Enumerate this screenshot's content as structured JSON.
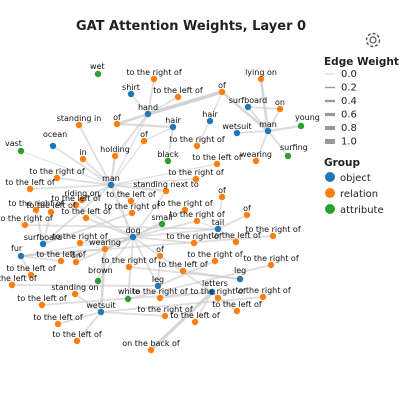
{
  "chart_data": {
    "type": "network",
    "title": "GAT Attention Weights, Layer 0",
    "colors": {
      "object": "#1f77b4",
      "relation": "#ff7f0e",
      "attribute": "#2ca02c"
    },
    "legend": {
      "edge_title": "Edge Weight",
      "edge_levels": [
        "0.0",
        "0.2",
        "0.4",
        "0.6",
        "0.8",
        "1.0"
      ],
      "group_title": "Group",
      "groups": [
        {
          "key": "object",
          "label": "object"
        },
        {
          "key": "relation",
          "label": "relation"
        },
        {
          "key": "attribute",
          "label": "attribute"
        }
      ]
    },
    "nodes": [
      {
        "id": "wet",
        "label": "wet",
        "group": "attribute"
      },
      {
        "id": "lyingon",
        "label": "lying on",
        "group": "relation"
      },
      {
        "id": "toright_a",
        "label": "to the right of",
        "group": "relation"
      },
      {
        "id": "shirt",
        "label": "shirt",
        "group": "object"
      },
      {
        "id": "of_a",
        "label": "of",
        "group": "relation"
      },
      {
        "id": "toleft_a",
        "label": "to the left of",
        "group": "relation"
      },
      {
        "id": "surfboard_a",
        "label": "surfboard",
        "group": "object"
      },
      {
        "id": "on_a",
        "label": "on",
        "group": "relation"
      },
      {
        "id": "hand",
        "label": "hand",
        "group": "object"
      },
      {
        "id": "young",
        "label": "young",
        "group": "attribute"
      },
      {
        "id": "hair_a",
        "label": "hair",
        "group": "object"
      },
      {
        "id": "wetsuit_a",
        "label": "wetsuit",
        "group": "object"
      },
      {
        "id": "man_a",
        "label": "man",
        "group": "object"
      },
      {
        "id": "standingin",
        "label": "standing in",
        "group": "relation"
      },
      {
        "id": "of_b",
        "label": "of",
        "group": "relation"
      },
      {
        "id": "hair_b",
        "label": "hair",
        "group": "object"
      },
      {
        "id": "of_c",
        "label": "of",
        "group": "relation"
      },
      {
        "id": "toright_b",
        "label": "to the right of",
        "group": "relation"
      },
      {
        "id": "vast",
        "label": "vast",
        "group": "attribute"
      },
      {
        "id": "ocean",
        "label": "ocean",
        "group": "object"
      },
      {
        "id": "holding",
        "label": "holding",
        "group": "relation"
      },
      {
        "id": "black",
        "label": "black",
        "group": "attribute"
      },
      {
        "id": "wearing_a",
        "label": "wearing",
        "group": "relation"
      },
      {
        "id": "surfing",
        "label": "surfing",
        "group": "attribute"
      },
      {
        "id": "in",
        "label": "in",
        "group": "relation"
      },
      {
        "id": "toleft_b",
        "label": "to the left of",
        "group": "relation"
      },
      {
        "id": "toright_c",
        "label": "to the right of",
        "group": "relation"
      },
      {
        "id": "toleft_c",
        "label": "to the left of",
        "group": "relation"
      },
      {
        "id": "toright_d",
        "label": "to the right of",
        "group": "relation"
      },
      {
        "id": "man_b",
        "label": "man",
        "group": "object"
      },
      {
        "id": "standingnextto",
        "label": "standing next to",
        "group": "relation"
      },
      {
        "id": "toleft_d",
        "label": "to the left of",
        "group": "relation"
      },
      {
        "id": "ridingon",
        "label": "riding on",
        "group": "relation"
      },
      {
        "id": "of_d",
        "label": "of",
        "group": "relation"
      },
      {
        "id": "toleft_e",
        "label": "to the left of",
        "group": "relation"
      },
      {
        "id": "toright_e",
        "label": "to the right of",
        "group": "relation"
      },
      {
        "id": "toleft_f",
        "label": "to the left of",
        "group": "relation"
      },
      {
        "id": "toright_f",
        "label": "to the right of",
        "group": "relation"
      },
      {
        "id": "toleft_g",
        "label": "to the left of",
        "group": "relation"
      },
      {
        "id": "of_e",
        "label": "of",
        "group": "relation"
      },
      {
        "id": "toright_g",
        "label": "to the right of",
        "group": "relation"
      },
      {
        "id": "toright_h",
        "label": "to the right of",
        "group": "relation"
      },
      {
        "id": "small",
        "label": "small",
        "group": "attribute"
      },
      {
        "id": "tail",
        "label": "tail",
        "group": "object"
      },
      {
        "id": "toright_i",
        "label": "to the right of",
        "group": "relation"
      },
      {
        "id": "surfboard_b",
        "label": "surfboard",
        "group": "object"
      },
      {
        "id": "dog",
        "label": "dog",
        "group": "object"
      },
      {
        "id": "toright_j",
        "label": "to the right of",
        "group": "relation"
      },
      {
        "id": "toleft_h",
        "label": "to the left of",
        "group": "relation"
      },
      {
        "id": "wearing_b",
        "label": "wearing",
        "group": "relation"
      },
      {
        "id": "fur",
        "label": "fur",
        "group": "object"
      },
      {
        "id": "of_f",
        "label": "of",
        "group": "relation"
      },
      {
        "id": "toright_k",
        "label": "to the right of",
        "group": "relation"
      },
      {
        "id": "toleft_i",
        "label": "to the left of",
        "group": "relation"
      },
      {
        "id": "on_b",
        "label": "on",
        "group": "relation"
      },
      {
        "id": "toright_l",
        "label": "to the right of",
        "group": "relation"
      },
      {
        "id": "toleft_j",
        "label": "to the left of",
        "group": "relation"
      },
      {
        "id": "toleft_k",
        "label": "to the left of",
        "group": "relation"
      },
      {
        "id": "toright_m",
        "label": "to the right of",
        "group": "relation"
      },
      {
        "id": "leg_a",
        "label": "leg",
        "group": "object"
      },
      {
        "id": "toright_n",
        "label": "to the right of",
        "group": "relation"
      },
      {
        "id": "brown",
        "label": "brown",
        "group": "attribute"
      },
      {
        "id": "leg_b",
        "label": "leg",
        "group": "object"
      },
      {
        "id": "toright_o",
        "label": "to the right of",
        "group": "relation"
      },
      {
        "id": "white",
        "label": "white",
        "group": "attribute"
      },
      {
        "id": "standingon",
        "label": "standing on",
        "group": "relation"
      },
      {
        "id": "letters",
        "label": "letters",
        "group": "object"
      },
      {
        "id": "toleft_l",
        "label": "to the left of",
        "group": "relation"
      },
      {
        "id": "toright_p",
        "label": "to the right of",
        "group": "relation"
      },
      {
        "id": "toright_q",
        "label": "to the right of",
        "group": "relation"
      },
      {
        "id": "toleft_m",
        "label": "to the left of",
        "group": "relation"
      },
      {
        "id": "wetsuit_b",
        "label": "wetsuit",
        "group": "object"
      },
      {
        "id": "toright_r",
        "label": "to the right of",
        "group": "relation"
      },
      {
        "id": "toright_s",
        "label": "to the right of",
        "group": "relation"
      },
      {
        "id": "toleft_n",
        "label": "to the left of",
        "group": "relation"
      },
      {
        "id": "toleft_o",
        "label": "to the left of",
        "group": "relation"
      },
      {
        "id": "toleft_p",
        "label": "to the left of",
        "group": "relation"
      },
      {
        "id": "onthebackof",
        "label": "on the back of",
        "group": "relation"
      },
      {
        "id": "toleft_q",
        "label": "to the left of",
        "group": "relation"
      }
    ],
    "edges": [
      [
        "hand",
        "of_a",
        0.7
      ],
      [
        "of_a",
        "man_a",
        0.5
      ],
      [
        "hand",
        "toright_a",
        0.3
      ],
      [
        "hand",
        "toleft_a",
        0.3
      ],
      [
        "hand",
        "of_b",
        0.5
      ],
      [
        "of_b",
        "hair_b",
        0.4
      ],
      [
        "hand",
        "shirt",
        0.2
      ],
      [
        "hand",
        "holding",
        0.3
      ],
      [
        "lyingon",
        "man_a",
        0.5
      ],
      [
        "surfboard_a",
        "on_a",
        0.3
      ],
      [
        "on_a",
        "man_a",
        0.3
      ],
      [
        "surfboard_a",
        "man_a",
        0.3
      ],
      [
        "man_a",
        "young",
        0.4
      ],
      [
        "man_a",
        "wetsuit_a",
        0.3
      ],
      [
        "man_a",
        "surfing",
        0.3
      ],
      [
        "man_a",
        "wearing_a",
        0.3
      ],
      [
        "hair_a",
        "of_a",
        0.2
      ],
      [
        "hair_a",
        "toright_b",
        0.2
      ],
      [
        "hair_b",
        "of_c",
        0.2
      ],
      [
        "hair_b",
        "black",
        0.3
      ],
      [
        "man_b",
        "holding",
        0.4
      ],
      [
        "man_b",
        "in",
        0.3
      ],
      [
        "man_b",
        "standingin",
        0.3
      ],
      [
        "man_b",
        "ocean",
        0.3
      ],
      [
        "man_b",
        "vast",
        0.15
      ],
      [
        "man_b",
        "toright_c",
        0.3
      ],
      [
        "man_b",
        "toleft_b",
        0.2
      ],
      [
        "man_b",
        "toleft_c",
        0.3
      ],
      [
        "man_b",
        "standingnextto",
        0.4
      ],
      [
        "man_b",
        "ridingon",
        0.3
      ],
      [
        "man_b",
        "toleft_d",
        0.3
      ],
      [
        "man_b",
        "dog",
        0.4
      ],
      [
        "man_b",
        "surfboard_b",
        0.3
      ],
      [
        "man_b",
        "hand",
        0.2
      ],
      [
        "man_b",
        "toright_d",
        0.2
      ],
      [
        "man_b",
        "of_c",
        0.2
      ],
      [
        "dog",
        "wearing_b",
        0.5
      ],
      [
        "dog",
        "standingnextto",
        0.3
      ],
      [
        "dog",
        "toright_h",
        0.3
      ],
      [
        "dog",
        "toright_g",
        0.3
      ],
      [
        "dog",
        "toleft_g",
        0.3
      ],
      [
        "dog",
        "tail",
        0.3
      ],
      [
        "dog",
        "small",
        0.3
      ],
      [
        "dog",
        "brown",
        0.3
      ],
      [
        "dog",
        "white",
        0.3
      ],
      [
        "dog",
        "leg_a",
        0.3
      ],
      [
        "dog",
        "toright_k",
        0.3
      ],
      [
        "dog",
        "of_f",
        0.3
      ],
      [
        "dog",
        "on_b",
        0.3
      ],
      [
        "dog",
        "toleft_e",
        0.3
      ],
      [
        "dog",
        "toright_j",
        0.3
      ],
      [
        "dog",
        "fur",
        0.2
      ],
      [
        "wearing_b",
        "wetsuit_b",
        0.5
      ],
      [
        "wearing_b",
        "fur",
        0.3
      ],
      [
        "tail",
        "of_e",
        0.3
      ],
      [
        "tail",
        "toright_i",
        0.3
      ],
      [
        "tail",
        "toleft_h",
        0.3
      ],
      [
        "tail",
        "toright_h",
        0.2
      ],
      [
        "surfboard_b",
        "toleft_f",
        0.3
      ],
      [
        "surfboard_b",
        "toright_f",
        0.3
      ],
      [
        "surfboard_b",
        "toright_e",
        0.3
      ],
      [
        "leg_a",
        "toright_o",
        0.3
      ],
      [
        "leg_a",
        "toleft_l",
        0.3
      ],
      [
        "leg_a",
        "of_f",
        0.3
      ],
      [
        "leg_b",
        "toright_n",
        0.3
      ],
      [
        "leg_b",
        "toleft_k",
        0.3
      ],
      [
        "letters",
        "onthebackof",
        0.6
      ],
      [
        "letters",
        "toright_p",
        0.3
      ],
      [
        "letters",
        "toright_q",
        0.3
      ],
      [
        "letters",
        "toleft_m",
        0.3
      ],
      [
        "letters",
        "toleft_o",
        0.3
      ],
      [
        "letters",
        "toleft_n",
        0.3
      ],
      [
        "wetsuit_b",
        "toright_r",
        0.3
      ],
      [
        "wetsuit_b",
        "toleft_p",
        0.3
      ],
      [
        "wetsuit_b",
        "standingon",
        0.3
      ],
      [
        "wetsuit_b",
        "toleft_q",
        0.3
      ],
      [
        "wetsuit_b",
        "toright_s",
        0.3
      ],
      [
        "fur",
        "toright_l",
        0.3
      ],
      [
        "fur",
        "toleft_i",
        0.3
      ],
      [
        "fur",
        "toleft_j",
        0.3
      ],
      [
        "white",
        "toright_m",
        0.3
      ],
      [
        "brown",
        "wearing_b",
        0.2
      ],
      [
        "of_f",
        "letters",
        0.3
      ],
      [
        "tail",
        "of_d",
        0.2
      ]
    ]
  }
}
